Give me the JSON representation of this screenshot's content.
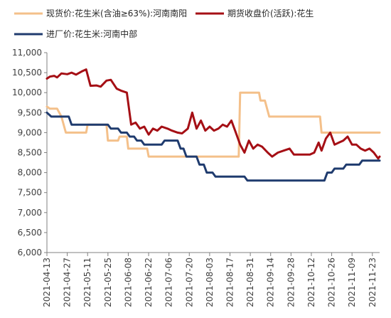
{
  "chart_data": {
    "type": "line",
    "title": "",
    "xlabel": "",
    "ylabel": "",
    "ylim": [
      6000,
      11000
    ],
    "yticks": [
      "6,000",
      "6,500",
      "7,000",
      "7,500",
      "8,000",
      "8,500",
      "9,000",
      "9,500",
      "10,000",
      "10,500",
      "11,000"
    ],
    "ytick_values": [
      6000,
      6500,
      7000,
      7500,
      8000,
      8500,
      9000,
      9500,
      10000,
      10500,
      11000
    ],
    "xlim": [
      "2021-04-13",
      "2021-11-28"
    ],
    "xticks": [
      "2021-04-13",
      "2021-04-27",
      "2021-05-11",
      "2021-05-25",
      "2021-06-08",
      "2021-06-22",
      "2021-07-06",
      "2021-07-20",
      "2021-08-03",
      "2021-08-17",
      "2021-08-31",
      "2021-09-14",
      "2021-09-28",
      "2021-10-12",
      "2021-10-26",
      "2021-11-09",
      "2021-11-23"
    ],
    "grid": false,
    "legend_position": "top",
    "series": [
      {
        "name": "现货价:花生米(含油≥63%):河南南阳",
        "color": "#F4C08A",
        "points": [
          [
            "2021-04-13",
            9650
          ],
          [
            "2021-04-15",
            9600
          ],
          [
            "2021-04-20",
            9600
          ],
          [
            "2021-04-23",
            9400
          ],
          [
            "2021-04-26",
            9000
          ],
          [
            "2021-05-10",
            9000
          ],
          [
            "2021-05-11",
            9200
          ],
          [
            "2021-05-24",
            9200
          ],
          [
            "2021-05-25",
            8800
          ],
          [
            "2021-06-01",
            8800
          ],
          [
            "2021-06-02",
            8900
          ],
          [
            "2021-06-07",
            8900
          ],
          [
            "2021-06-08",
            8600
          ],
          [
            "2021-06-21",
            8600
          ],
          [
            "2021-06-22",
            8400
          ],
          [
            "2021-07-19",
            8400
          ],
          [
            "2021-07-20",
            8400
          ],
          [
            "2021-08-23",
            8400
          ],
          [
            "2021-08-24",
            10000
          ],
          [
            "2021-09-06",
            10000
          ],
          [
            "2021-09-07",
            9800
          ],
          [
            "2021-09-10",
            9800
          ],
          [
            "2021-09-13",
            9400
          ],
          [
            "2021-10-18",
            9400
          ],
          [
            "2021-10-19",
            9000
          ],
          [
            "2021-11-28",
            9000
          ]
        ]
      },
      {
        "name": "期货收盘价(活跃):花生",
        "color": "#A50F15",
        "points": [
          [
            "2021-04-13",
            10350
          ],
          [
            "2021-04-15",
            10400
          ],
          [
            "2021-04-18",
            10420
          ],
          [
            "2021-04-20",
            10380
          ],
          [
            "2021-04-23",
            10480
          ],
          [
            "2021-04-27",
            10460
          ],
          [
            "2021-04-30",
            10500
          ],
          [
            "2021-05-03",
            10450
          ],
          [
            "2021-05-07",
            10530
          ],
          [
            "2021-05-10",
            10580
          ],
          [
            "2021-05-13",
            10170
          ],
          [
            "2021-05-17",
            10180
          ],
          [
            "2021-05-20",
            10150
          ],
          [
            "2021-05-24",
            10300
          ],
          [
            "2021-05-27",
            10320
          ],
          [
            "2021-05-31",
            10100
          ],
          [
            "2021-06-03",
            10050
          ],
          [
            "2021-06-07",
            10000
          ],
          [
            "2021-06-10",
            9200
          ],
          [
            "2021-06-13",
            9250
          ],
          [
            "2021-06-16",
            9100
          ],
          [
            "2021-06-19",
            9150
          ],
          [
            "2021-06-22",
            8950
          ],
          [
            "2021-06-25",
            9100
          ],
          [
            "2021-06-28",
            9050
          ],
          [
            "2021-07-01",
            9150
          ],
          [
            "2021-07-05",
            9100
          ],
          [
            "2021-07-08",
            9050
          ],
          [
            "2021-07-12",
            9000
          ],
          [
            "2021-07-15",
            8980
          ],
          [
            "2021-07-19",
            9100
          ],
          [
            "2021-07-22",
            9500
          ],
          [
            "2021-07-25",
            9100
          ],
          [
            "2021-07-28",
            9300
          ],
          [
            "2021-07-31",
            9050
          ],
          [
            "2021-08-03",
            9150
          ],
          [
            "2021-08-06",
            9050
          ],
          [
            "2021-08-09",
            9100
          ],
          [
            "2021-08-12",
            9200
          ],
          [
            "2021-08-15",
            9150
          ],
          [
            "2021-08-18",
            9300
          ],
          [
            "2021-08-21",
            9000
          ],
          [
            "2021-08-24",
            8700
          ],
          [
            "2021-08-27",
            8500
          ],
          [
            "2021-08-30",
            8800
          ],
          [
            "2021-09-02",
            8600
          ],
          [
            "2021-09-05",
            8700
          ],
          [
            "2021-09-08",
            8650
          ],
          [
            "2021-09-12",
            8500
          ],
          [
            "2021-09-15",
            8400
          ],
          [
            "2021-09-19",
            8500
          ],
          [
            "2021-09-23",
            8550
          ],
          [
            "2021-09-27",
            8600
          ],
          [
            "2021-09-30",
            8450
          ],
          [
            "2021-10-08",
            8450
          ],
          [
            "2021-10-11",
            8450
          ],
          [
            "2021-10-14",
            8500
          ],
          [
            "2021-10-17",
            8750
          ],
          [
            "2021-10-19",
            8550
          ],
          [
            "2021-10-22",
            8850
          ],
          [
            "2021-10-25",
            9000
          ],
          [
            "2021-10-28",
            8700
          ],
          [
            "2021-10-31",
            8750
          ],
          [
            "2021-11-03",
            8800
          ],
          [
            "2021-11-06",
            8900
          ],
          [
            "2021-11-09",
            8700
          ],
          [
            "2021-11-12",
            8700
          ],
          [
            "2021-11-15",
            8600
          ],
          [
            "2021-11-18",
            8550
          ],
          [
            "2021-11-21",
            8600
          ],
          [
            "2021-11-24",
            8500
          ],
          [
            "2021-11-27",
            8350
          ],
          [
            "2021-11-28",
            8400
          ]
        ]
      },
      {
        "name": "进厂价:花生米:河南中部",
        "color": "#1F3B6E",
        "points": [
          [
            "2021-04-13",
            9500
          ],
          [
            "2021-04-16",
            9400
          ],
          [
            "2021-04-28",
            9400
          ],
          [
            "2021-04-30",
            9200
          ],
          [
            "2021-05-25",
            9200
          ],
          [
            "2021-05-27",
            9100
          ],
          [
            "2021-06-01",
            9100
          ],
          [
            "2021-06-03",
            9000
          ],
          [
            "2021-06-07",
            9000
          ],
          [
            "2021-06-09",
            8900
          ],
          [
            "2021-06-12",
            8900
          ],
          [
            "2021-06-14",
            8800
          ],
          [
            "2021-06-17",
            8800
          ],
          [
            "2021-06-19",
            8700
          ],
          [
            "2021-07-01",
            8700
          ],
          [
            "2021-07-03",
            8800
          ],
          [
            "2021-07-12",
            8800
          ],
          [
            "2021-07-14",
            8600
          ],
          [
            "2021-07-16",
            8600
          ],
          [
            "2021-07-18",
            8400
          ],
          [
            "2021-07-25",
            8400
          ],
          [
            "2021-07-27",
            8200
          ],
          [
            "2021-07-30",
            8200
          ],
          [
            "2021-08-01",
            8000
          ],
          [
            "2021-08-05",
            8000
          ],
          [
            "2021-08-07",
            7900
          ],
          [
            "2021-08-27",
            7900
          ],
          [
            "2021-08-29",
            7800
          ],
          [
            "2021-10-21",
            7800
          ],
          [
            "2021-10-23",
            8000
          ],
          [
            "2021-10-26",
            8000
          ],
          [
            "2021-10-28",
            8100
          ],
          [
            "2021-11-03",
            8100
          ],
          [
            "2021-11-05",
            8200
          ],
          [
            "2021-11-14",
            8200
          ],
          [
            "2021-11-16",
            8300
          ],
          [
            "2021-11-28",
            8300
          ]
        ]
      }
    ]
  }
}
